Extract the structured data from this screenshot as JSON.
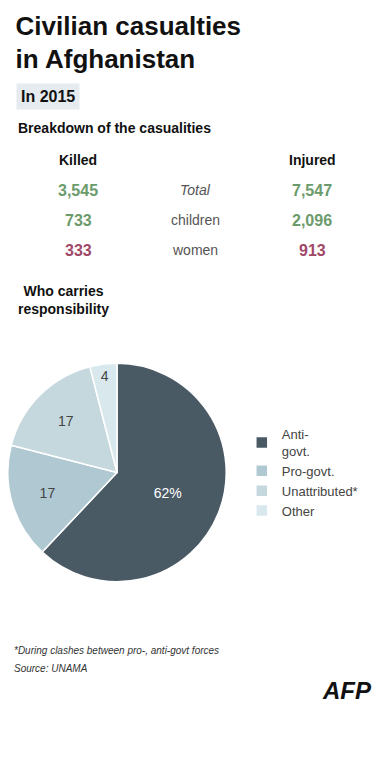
{
  "title": "Civilian casualties\nin Afghanistan",
  "subtitle": "In 2015",
  "annotations": [
    "*During clashes between pro-, anti-govt forces",
    "Source: UNAMA",
    "AFP"
  ],
  "chart_data": [
    {
      "type": "table",
      "title": "Breakdown of the casualities",
      "categories": [
        "Total",
        "children",
        "women"
      ],
      "colors": [
        "#6b9b6b",
        "#6b9b6b",
        "#a04868"
      ],
      "series": [
        {
          "name": "Killed",
          "values": [
            3545,
            733,
            333
          ],
          "value_labels": [
            "3,545",
            "733",
            "333"
          ]
        },
        {
          "name": "Injured",
          "values": [
            7547,
            2096,
            913
          ],
          "value_labels": [
            "7,547",
            "2,096",
            "913"
          ]
        }
      ],
      "data_labels": true
    },
    {
      "type": "pie",
      "title": "Who carries\nresponsibility",
      "categories": [
        "Anti-\ngovt.",
        "Pro-govt.",
        "Unattributed*",
        "Other"
      ],
      "values": [
        62,
        17,
        17,
        4
      ],
      "value_labels": [
        "62%",
        "17",
        "17",
        "4"
      ],
      "colors": [
        "#4a5a65",
        "#b0c8d2",
        "#c5d8de",
        "#d8e8ed"
      ],
      "data_labels": true,
      "legend": "right"
    }
  ]
}
